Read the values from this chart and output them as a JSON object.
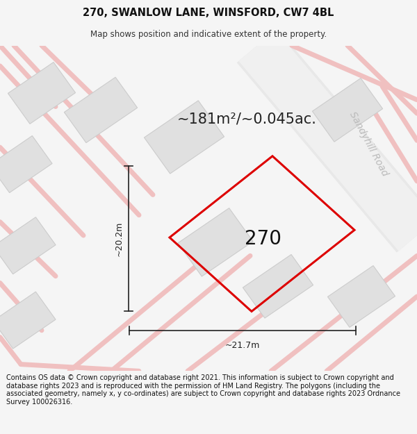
{
  "title": "270, SWANLOW LANE, WINSFORD, CW7 4BL",
  "subtitle": "Map shows position and indicative extent of the property.",
  "footer": "Contains OS data © Crown copyright and database right 2021. This information is subject to Crown copyright and database rights 2023 and is reproduced with the permission of HM Land Registry. The polygons (including the associated geometry, namely x, y co-ordinates) are subject to Crown copyright and database rights 2023 Ordnance Survey 100026316.",
  "area_text": "~181m²/~0.045ac.",
  "road_label": "Sandyhill Road",
  "property_label": "270",
  "dim_width": "~21.7m",
  "dim_height": "~20.2m",
  "bg_color": "#f5f5f5",
  "map_bg": "#ffffff",
  "building_fill": "#e0e0e0",
  "building_edge": "#cccccc",
  "property_edge": "#dd0000",
  "property_fill": "#ffffff",
  "road_pink": "#f0c0c0",
  "road_gray": "#d8d8d8",
  "dim_color": "#222222",
  "title_fontsize": 10.5,
  "subtitle_fontsize": 8.5,
  "footer_fontsize": 7.0,
  "area_fontsize": 15,
  "road_label_fontsize": 10,
  "property_label_fontsize": 20
}
